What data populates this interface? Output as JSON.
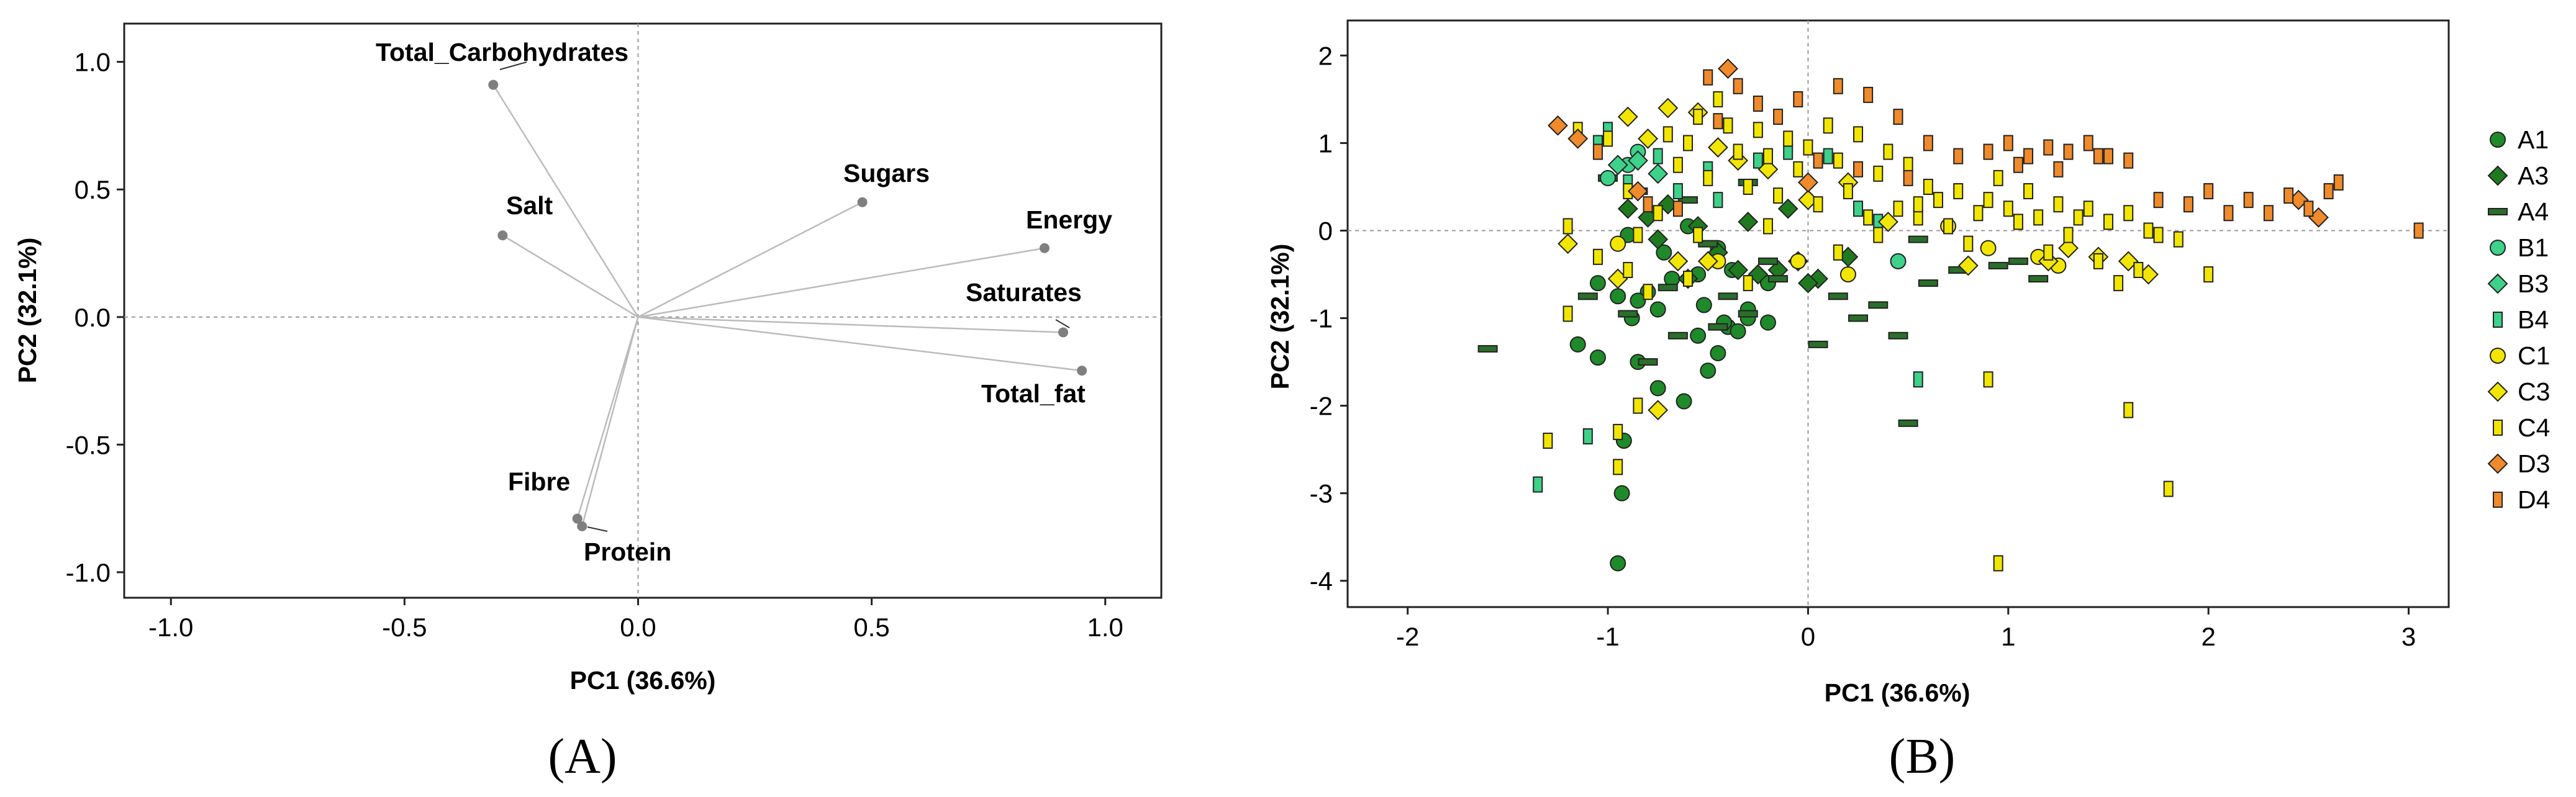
{
  "chart_data": [
    {
      "type": "scatter",
      "subtype": "loading-plot",
      "panel_label": "(A)",
      "xlabel": "PC1 (36.6%)",
      "ylabel": "PC2 (32.1%)",
      "xlim": [
        -1.1,
        1.12
      ],
      "ylim": [
        -1.1,
        1.15
      ],
      "xticks": [
        "-1.0",
        "-0.5",
        "0.0",
        "0.5",
        "1.0"
      ],
      "yticks": [
        "1.0",
        "0.5",
        "0.0",
        "-0.5",
        "-1.0"
      ],
      "grid": false,
      "reference_lines": "dashed lines at x=0 and y=0",
      "line_color": "#bbbbbb",
      "point_color": "#7f7f7f",
      "points": [
        {
          "name": "Total_Carbohydrates",
          "x": -0.31,
          "y": 0.91
        },
        {
          "name": "Sugars",
          "x": 0.48,
          "y": 0.45
        },
        {
          "name": "Energy",
          "x": 0.87,
          "y": 0.27
        },
        {
          "name": "Saturates",
          "x": 0.91,
          "y": -0.06
        },
        {
          "name": "Total_fat",
          "x": 0.95,
          "y": -0.21
        },
        {
          "name": "Salt",
          "x": -0.29,
          "y": 0.32
        },
        {
          "name": "Fibre",
          "x": -0.13,
          "y": -0.79
        },
        {
          "name": "Protein",
          "x": -0.12,
          "y": -0.82
        }
      ]
    },
    {
      "type": "scatter",
      "subtype": "score-plot",
      "panel_label": "(B)",
      "xlabel": "PC1 (36.6%)",
      "ylabel": "PC2 (32.1%)",
      "xlim": [
        -2.3,
        3.2
      ],
      "ylim": [
        -4.3,
        2.4
      ],
      "xticks": [
        "-2",
        "-1",
        "0",
        "1",
        "2",
        "3"
      ],
      "yticks": [
        "2",
        "1",
        "0",
        "-1",
        "-2",
        "-3",
        "-4"
      ],
      "grid": false,
      "reference_lines": "dashed lines at x=0 and y=0",
      "legend_position": "right",
      "series": [
        {
          "name": "A1",
          "marker": "circle",
          "color": "#1f8a2a",
          "x": [
            -0.95,
            -0.93,
            -0.92,
            -1.15,
            -1.05,
            -0.85,
            -0.75,
            -0.62,
            -0.5,
            -0.45,
            -0.4,
            -0.3,
            -0.95,
            -0.8,
            -0.68,
            -0.55,
            -0.38,
            -0.52,
            -0.3,
            -0.2,
            -0.88,
            -0.72,
            -0.45,
            -0.35,
            -0.2,
            -1.05,
            -0.9,
            -0.6,
            -0.85,
            -0.55,
            -0.42,
            -0.75
          ],
          "y": [
            -3.8,
            -3.0,
            -2.4,
            -1.3,
            -1.45,
            -1.5,
            -1.8,
            -1.95,
            -1.6,
            -1.4,
            -1.1,
            -1.0,
            -0.75,
            -0.7,
            -0.55,
            -0.5,
            -0.45,
            -0.85,
            -0.9,
            -0.6,
            -1.0,
            -0.25,
            -0.2,
            -1.15,
            -1.05,
            -0.6,
            -0.05,
            0.05,
            -0.8,
            -1.2,
            -1.05,
            -0.9
          ]
        },
        {
          "name": "A3",
          "marker": "diamond",
          "color": "#1f7a1f",
          "x": [
            -0.9,
            -0.8,
            -0.7,
            -0.55,
            -0.45,
            -0.35,
            -0.25,
            -0.15,
            -0.05,
            0.05,
            0.2,
            -0.6,
            -0.3,
            -0.1,
            -0.75,
            0.0
          ],
          "y": [
            0.25,
            0.15,
            0.3,
            0.05,
            -0.25,
            -0.45,
            -0.5,
            -0.45,
            -0.35,
            -0.55,
            -0.3,
            -0.55,
            0.1,
            0.25,
            -0.1,
            -0.6
          ]
        },
        {
          "name": "A4",
          "marker": "dash",
          "color": "#2a6e2a",
          "x": [
            -1.6,
            -1.1,
            -0.9,
            -0.8,
            -0.65,
            -0.45,
            -0.3,
            -0.15,
            0.05,
            0.25,
            0.45,
            0.6,
            0.75,
            0.95,
            1.15,
            0.5,
            0.15,
            -0.2,
            -0.5,
            -1.0,
            -0.85,
            -0.6,
            -0.3,
            0.35,
            0.55,
            1.05,
            -0.7,
            -0.4
          ],
          "y": [
            -1.35,
            -0.75,
            -0.95,
            -1.5,
            -1.2,
            -1.1,
            -0.95,
            -0.55,
            -1.3,
            -1.0,
            -1.2,
            -0.6,
            -0.45,
            -0.4,
            -0.55,
            -2.2,
            -0.75,
            -0.35,
            -0.15,
            0.6,
            0.45,
            0.35,
            0.55,
            -0.85,
            -0.1,
            -0.35,
            -0.65,
            -0.75
          ]
        },
        {
          "name": "B1",
          "marker": "circle",
          "color": "#3dd18a",
          "x": [
            -1.0,
            -0.9,
            -0.85,
            0.45
          ],
          "y": [
            0.6,
            0.75,
            0.9,
            -0.35
          ]
        },
        {
          "name": "B3",
          "marker": "diamond",
          "color": "#3dd18a",
          "x": [
            -0.95,
            -0.85,
            -0.75
          ],
          "y": [
            0.75,
            0.8,
            0.65
          ]
        },
        {
          "name": "B4",
          "marker": "bar",
          "color": "#3dd18a",
          "x": [
            -1.35,
            -1.1,
            -1.05,
            -1.0,
            -0.9,
            -0.75,
            -0.65,
            -0.5,
            -0.45,
            -0.25,
            -0.1,
            0.1,
            0.25,
            0.35,
            0.55
          ],
          "y": [
            -2.9,
            -2.35,
            1.0,
            1.15,
            0.55,
            0.85,
            0.45,
            0.7,
            0.35,
            0.8,
            0.9,
            0.85,
            0.25,
            0.1,
            -1.7
          ]
        },
        {
          "name": "C1",
          "marker": "circle",
          "color": "#f2e600",
          "x": [
            -0.95,
            -0.45,
            -0.05,
            0.2,
            0.7,
            1.15,
            1.25,
            0.9
          ],
          "y": [
            -0.15,
            -0.35,
            -0.35,
            -0.5,
            0.05,
            -0.3,
            -0.4,
            -0.2
          ]
        },
        {
          "name": "C3",
          "marker": "diamond",
          "color": "#f2e600",
          "x": [
            -1.2,
            -0.95,
            -0.9,
            -0.8,
            -0.75,
            -0.7,
            -0.55,
            -0.45,
            -0.35,
            -0.2,
            0.2,
            0.4,
            0.8,
            1.2,
            1.3,
            1.45,
            1.6,
            1.7,
            -0.5,
            -0.65,
            0.0
          ],
          "y": [
            -0.15,
            -0.55,
            1.3,
            1.05,
            -2.05,
            1.4,
            1.35,
            0.95,
            0.8,
            0.7,
            0.55,
            0.1,
            -0.4,
            -0.35,
            -0.2,
            -0.3,
            -0.35,
            -0.5,
            -0.35,
            -0.35,
            0.35
          ]
        },
        {
          "name": "C4",
          "marker": "bar",
          "color": "#f2e600",
          "x": [
            -1.3,
            -1.2,
            -1.15,
            -1.0,
            -0.95,
            -0.9,
            -0.85,
            -0.75,
            -0.7,
            -0.65,
            -0.6,
            -0.55,
            -0.5,
            -0.45,
            -0.4,
            -0.35,
            -0.3,
            -0.25,
            -0.2,
            -0.15,
            -0.1,
            -0.05,
            0.0,
            0.05,
            0.1,
            0.15,
            0.2,
            0.25,
            0.3,
            0.35,
            0.4,
            0.45,
            0.5,
            0.55,
            0.6,
            0.65,
            0.7,
            0.75,
            0.8,
            0.85,
            0.9,
            0.95,
            1.0,
            1.05,
            1.1,
            1.15,
            1.2,
            1.25,
            1.3,
            1.35,
            1.4,
            1.45,
            1.5,
            1.55,
            1.6,
            1.65,
            1.7,
            1.75,
            1.85,
            2.0,
            1.6,
            1.8,
            0.9,
            0.95,
            -0.85,
            -0.95,
            -0.9,
            -1.2,
            -1.05,
            -0.8,
            -0.6,
            -0.3,
            -0.55,
            -0.2,
            0.15,
            0.35,
            0.55
          ],
          "y": [
            -2.4,
            -0.95,
            1.15,
            1.05,
            -2.3,
            0.45,
            -0.05,
            0.2,
            1.1,
            0.75,
            1.0,
            1.3,
            0.6,
            1.5,
            1.2,
            0.9,
            0.5,
            1.15,
            0.85,
            0.4,
            1.05,
            0.7,
            0.95,
            0.3,
            1.2,
            0.8,
            0.45,
            1.1,
            0.15,
            0.65,
            0.9,
            0.25,
            0.75,
            0.15,
            0.5,
            0.35,
            0.05,
            0.45,
            -0.15,
            0.2,
            0.35,
            0.6,
            0.25,
            0.1,
            0.45,
            0.15,
            -0.25,
            0.3,
            -0.05,
            0.15,
            0.25,
            -0.35,
            0.1,
            -0.6,
            0.2,
            -0.45,
            0.0,
            -0.05,
            -0.1,
            -0.5,
            -2.05,
            -2.95,
            -1.7,
            -3.8,
            -2.0,
            -2.7,
            -0.45,
            0.05,
            -0.3,
            -0.7,
            -0.55,
            -0.6,
            -0.05,
            0.05,
            -0.25,
            -0.05,
            0.3
          ]
        },
        {
          "name": "D3",
          "marker": "diamond",
          "color": "#f08a2a",
          "x": [
            -1.25,
            -1.15,
            -0.85,
            -0.4,
            0.0,
            2.45,
            2.55
          ],
          "y": [
            1.2,
            1.05,
            0.45,
            1.85,
            0.55,
            0.35,
            0.15
          ]
        },
        {
          "name": "D4",
          "marker": "bar",
          "color": "#f08a2a",
          "x": [
            -1.05,
            -0.5,
            -0.35,
            -0.25,
            -0.15,
            -0.05,
            0.15,
            0.3,
            0.45,
            0.6,
            0.75,
            0.9,
            1.0,
            1.1,
            1.2,
            1.3,
            1.4,
            1.5,
            1.6,
            1.75,
            1.9,
            2.0,
            2.1,
            2.2,
            2.3,
            2.4,
            2.5,
            2.6,
            2.65,
            3.05,
            -0.45,
            0.05,
            0.25,
            0.5,
            1.05,
            1.25,
            1.45,
            -0.8,
            -0.65
          ],
          "y": [
            0.9,
            1.75,
            1.65,
            1.45,
            1.3,
            1.5,
            1.65,
            1.55,
            1.3,
            1.0,
            0.85,
            0.9,
            1.0,
            0.85,
            0.95,
            0.9,
            1.0,
            0.85,
            0.8,
            0.35,
            0.3,
            0.45,
            0.2,
            0.35,
            0.2,
            0.4,
            0.25,
            0.45,
            0.55,
            0.0,
            1.25,
            0.8,
            0.7,
            0.6,
            0.75,
            0.7,
            0.85,
            0.3,
            0.25
          ]
        }
      ]
    }
  ]
}
